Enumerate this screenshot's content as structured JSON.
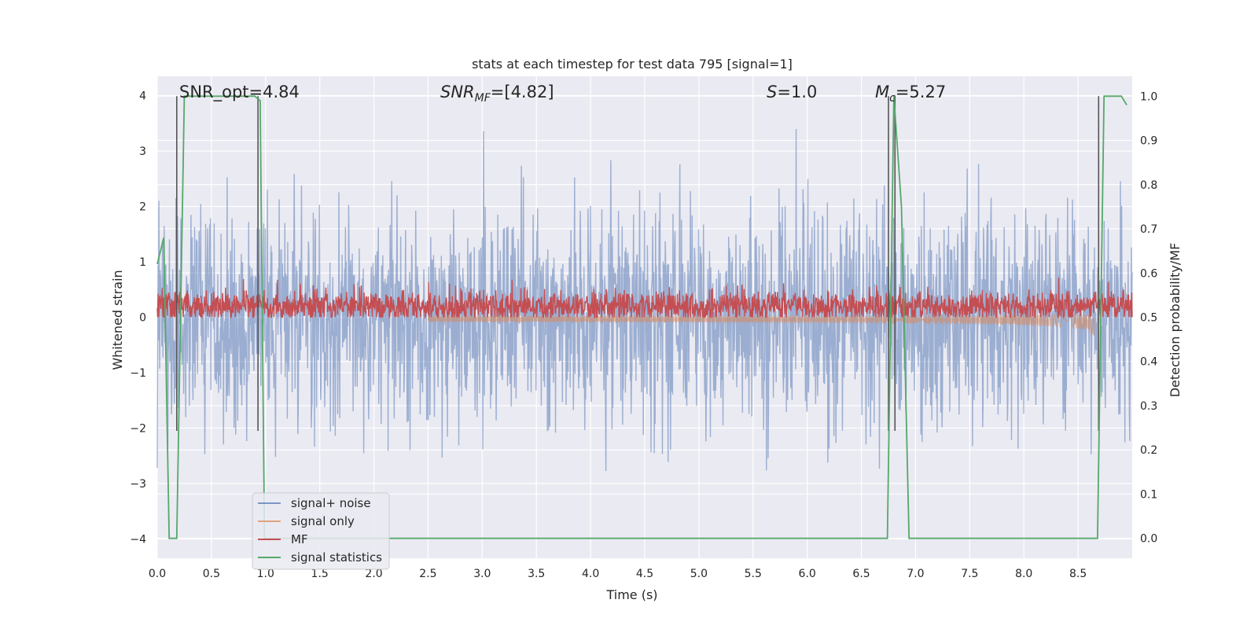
{
  "chart_data": {
    "type": "line",
    "title": "stats at each timestep for test data 795 [signal=1]",
    "xlabel": "Time (s)",
    "ylabel_left": "Whitened strain",
    "ylabel_right": "Detection probability/MF",
    "xlim": [
      0.0,
      9.0
    ],
    "ylim_left": [
      -4.35,
      4.35
    ],
    "ylim_right": [
      -0.045,
      1.045
    ],
    "x_ticks": [
      "0.0",
      "0.5",
      "1.0",
      "1.5",
      "2.0",
      "2.5",
      "3.0",
      "3.5",
      "4.0",
      "4.5",
      "5.0",
      "5.5",
      "6.0",
      "6.5",
      "7.0",
      "7.5",
      "8.0",
      "8.5"
    ],
    "y_ticks_left": [
      "−4",
      "−3",
      "−2",
      "−1",
      "0",
      "1",
      "2",
      "3",
      "4"
    ],
    "y_ticks_right": [
      "0.0",
      "0.1",
      "0.2",
      "0.3",
      "0.4",
      "0.5",
      "0.6",
      "0.7",
      "0.8",
      "0.9",
      "1.0"
    ],
    "grid": true,
    "legend_position": "lower-left",
    "annotations": [
      {
        "id": "snr_opt",
        "text": "SNR_opt=4.84"
      },
      {
        "id": "snr_mf",
        "text": "SNR_MF=[4.82]",
        "base": "SNR",
        "sub": "MF",
        "rest": "=[4.82]"
      },
      {
        "id": "s",
        "text": "S=1.0",
        "base": "S",
        "rest": "=1.0"
      },
      {
        "id": "mc",
        "text": "M_c=5.27",
        "base": "M",
        "sub": "c",
        "rest": "=5.27"
      }
    ],
    "series": [
      {
        "name": "signal+ noise",
        "color": "#4c72b0",
        "alpha": 0.5,
        "kind": "noise",
        "envelope": {
          "upper": 2.2,
          "lower": -2.2,
          "max_peak": 3.4,
          "min_peak": -3.65
        }
      },
      {
        "name": "signal only",
        "color": "#dd8452",
        "alpha": 0.5,
        "kind": "chirp",
        "start_time": 2.5,
        "merger_time": 8.65,
        "peak_amplitude": 0.45
      },
      {
        "name": "MF",
        "color": "#c44e52",
        "axis": "right",
        "kind": "noise",
        "envelope": {
          "upper": 0.545,
          "lower": 0.505,
          "max_peak": 0.595,
          "min_peak": 0.5
        }
      },
      {
        "name": "signal statistics",
        "color": "#55a868",
        "axis": "right",
        "kind": "line",
        "x": [
          0.0,
          0.06,
          0.11,
          0.18,
          0.25,
          0.3,
          0.36,
          0.9,
          0.95,
          0.99,
          6.74,
          6.8,
          6.87,
          6.94,
          8.68,
          8.74,
          8.8,
          8.9,
          8.95
        ],
        "y": [
          0.62,
          0.68,
          0.0,
          0.0,
          1.0,
          1.0,
          1.0,
          1.0,
          0.99,
          0.0,
          0.0,
          1.0,
          0.75,
          0.0,
          0.0,
          1.0,
          1.0,
          1.0,
          0.98
        ]
      }
    ],
    "vertical_markers": {
      "color": "#555555",
      "x": [
        0.18,
        0.93,
        6.75,
        6.81,
        8.69
      ]
    }
  }
}
